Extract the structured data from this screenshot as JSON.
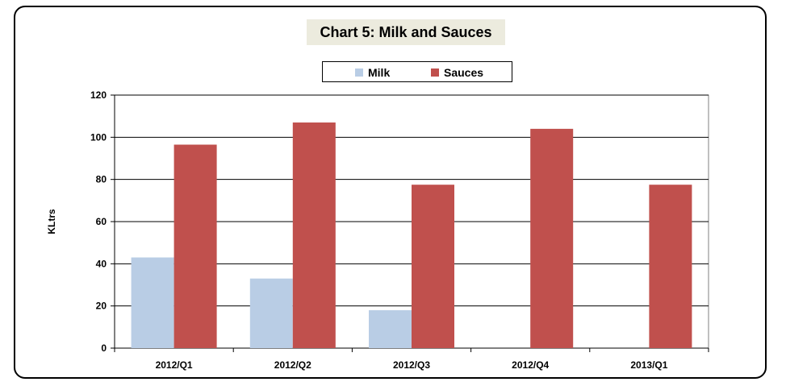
{
  "chart_data": {
    "type": "bar",
    "title": "Chart 5: Milk and Sauces",
    "xlabel": "",
    "ylabel": "KLtrs",
    "ylim": [
      0,
      120
    ],
    "yticks": [
      0,
      20,
      40,
      60,
      80,
      100,
      120
    ],
    "categories": [
      "2012/Q1",
      "2012/Q2",
      "2012/Q3",
      "2012/Q4",
      "2013/Q1"
    ],
    "series": [
      {
        "name": "Milk",
        "color": "#b9cde5",
        "values": [
          43,
          33,
          18,
          0,
          0
        ]
      },
      {
        "name": "Sauces",
        "color": "#c0504d",
        "values": [
          96.5,
          107,
          77.5,
          104,
          77.5
        ]
      }
    ],
    "grid": true,
    "legend": "top-center"
  }
}
